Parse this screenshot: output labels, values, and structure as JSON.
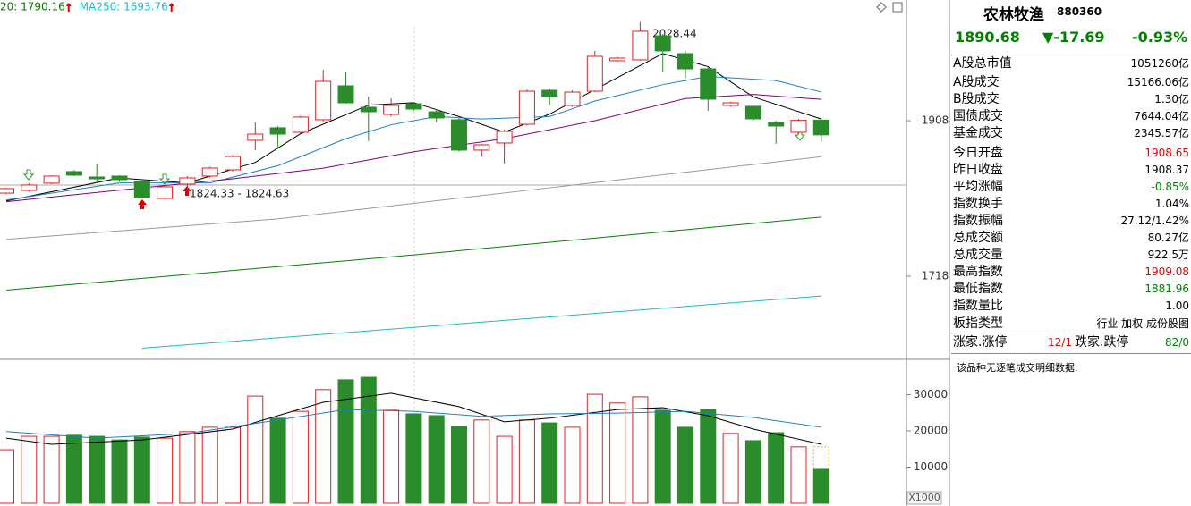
{
  "chart_data": [
    {
      "type": "candlestick",
      "up_color": "#e02020",
      "down_color": "#2b8c2b",
      "ylim": [
        1616.4,
        2055.4
      ],
      "yticks": [
        1908,
        1718
      ],
      "open": [
        1819.5,
        1822.8,
        1831.6,
        1845.8,
        1839.2,
        1840.3,
        1833.7,
        1813.0,
        1830.5,
        1840.3,
        1847.9,
        1884.0,
        1899.3,
        1893.8,
        1909.1,
        1950.6,
        1924.4,
        1915.6,
        1928.7,
        1918.9,
        1909.1,
        1872.0,
        1880.7,
        1903.6,
        1945.1,
        1926.6,
        1944.0,
        1981.2,
        1982.3,
        2011.7,
        1989.9,
        1971.3,
        1926.6,
        1925.5,
        1905.8,
        1893.8,
        1908.65
      ],
      "close": [
        1825.0,
        1829.4,
        1840.3,
        1841.4,
        1837.0,
        1835.9,
        1814.1,
        1827.2,
        1838.1,
        1850.1,
        1864.3,
        1891.6,
        1891.6,
        1912.4,
        1956.0,
        1929.8,
        1918.9,
        1926.6,
        1922.2,
        1911.3,
        1872.0,
        1878.5,
        1894.9,
        1944.0,
        1937.5,
        1942.9,
        1986.6,
        1984.4,
        2017.2,
        1993.2,
        1971.3,
        1934.2,
        1929.8,
        1910.2,
        1901.4,
        1908.37,
        1890.68
      ],
      "high": [
        1826,
        1831.6,
        1841.4,
        1847.9,
        1854.5,
        1841.4,
        1837.0,
        1828,
        1840.3,
        1852,
        1866,
        1905.8,
        1901.4,
        1914,
        1970.2,
        1968.1,
        1937.5,
        1935.3,
        1930.9,
        1922,
        1911,
        1880,
        1897,
        1946,
        1947,
        1945,
        1993.2,
        1986,
        2028.44,
        2014,
        1993,
        1973,
        1931,
        1926,
        1908,
        1910,
        1909.08
      ],
      "low": [
        1818,
        1821,
        1830.5,
        1840.3,
        1831.6,
        1833.7,
        1813,
        1812,
        1824.33,
        1838,
        1846,
        1872.0,
        1875.2,
        1892,
        1907,
        1928.7,
        1883,
        1913,
        1920,
        1906,
        1870,
        1864.3,
        1855.6,
        1902,
        1927,
        1925,
        1942.9,
        1980,
        1981,
        1968.1,
        1960,
        1920.0,
        1925,
        1908,
        1879.6,
        1892,
        1881.96
      ],
      "ma": [
        {
          "color": "#000000",
          "x": [
            0,
            5,
            8,
            11,
            13,
            16,
            18,
            20,
            22,
            24,
            26,
            29,
            31,
            33,
            36
          ],
          "values": [
            1810,
            1838,
            1832,
            1857,
            1892,
            1927,
            1930,
            1913,
            1894,
            1916,
            1946,
            1990,
            1974,
            1937,
            1910
          ]
        },
        {
          "color": "#1e7fc0",
          "x": [
            0,
            5,
            9,
            12,
            15,
            17,
            19,
            21,
            24,
            26,
            29,
            31,
            34,
            36
          ],
          "values": [
            1811,
            1832,
            1832,
            1853,
            1886,
            1903,
            1913,
            1910,
            1913,
            1932,
            1952,
            1962,
            1957,
            1943
          ]
        },
        {
          "color": "#800080",
          "x": [
            0,
            6,
            10,
            14,
            18,
            22,
            26,
            30,
            33,
            36
          ],
          "values": [
            1809,
            1826,
            1837,
            1850,
            1870,
            1886,
            1908,
            1935,
            1940,
            1934
          ]
        },
        {
          "color": "#999999",
          "x": [
            0,
            12,
            24,
            36
          ],
          "values": [
            1763,
            1788,
            1826,
            1864
          ]
        },
        {
          "name": "20: 1790.16",
          "color": "#008000",
          "x": [
            0,
            18,
            36
          ],
          "values": [
            1701,
            1744,
            1790.16
          ]
        },
        {
          "name": "MA250: 1693.76",
          "color": "#20b8c8",
          "x": [
            6,
            36
          ],
          "values": [
            1630,
            1693.76
          ]
        }
      ],
      "annotations": [
        "2028.44",
        "1824.33 - 1824.63"
      ]
    },
    {
      "type": "bar",
      "axis_label": "X1000",
      "ylim": [
        0,
        39500
      ],
      "yticks": [
        30000,
        20000,
        10000
      ],
      "values": [
        14800,
        18500,
        18500,
        18800,
        18500,
        17500,
        18300,
        18000,
        19800,
        21000,
        21000,
        29600,
        23500,
        25400,
        31400,
        34100,
        34800,
        25700,
        24700,
        24200,
        21200,
        23000,
        18500,
        23000,
        22200,
        21000,
        30100,
        27700,
        29400,
        25700,
        21000,
        25900,
        19300,
        17300,
        19500,
        15600,
        9400
      ],
      "forecast_value": 15600,
      "ma": [
        {
          "color": "#000000",
          "x": [
            0,
            2,
            6,
            10,
            14,
            17,
            20,
            22,
            24,
            27,
            29,
            31,
            33,
            36
          ],
          "values": [
            18000,
            16300,
            17500,
            20500,
            27900,
            30400,
            26700,
            22500,
            23500,
            25900,
            26400,
            24200,
            20500,
            16300
          ]
        },
        {
          "color": "#1e7fc0",
          "x": [
            0,
            4,
            8,
            12,
            15,
            18,
            21,
            24,
            27,
            30,
            33,
            36
          ],
          "values": [
            19800,
            18000,
            19300,
            23000,
            25900,
            25400,
            24000,
            24700,
            24900,
            25400,
            23700,
            21000
          ]
        }
      ]
    }
  ],
  "quote": {
    "name": "农林牧渔",
    "code": "880360",
    "price": "1890.68",
    "change": "▼-17.69",
    "change_pct": "-0.93%"
  },
  "stats": [
    {
      "label": "A股总市值",
      "value": "1051260亿"
    },
    {
      "label": "A股成交",
      "value": "15166.06亿"
    },
    {
      "label": "B股成交",
      "value": "1.30亿"
    },
    {
      "label": "国债成交",
      "value": "7644.04亿"
    },
    {
      "label": "基金成交",
      "value": "2345.57亿"
    },
    {
      "label": "今日开盘",
      "value": "1908.65",
      "color": "#e00000"
    },
    {
      "label": "昨日收盘",
      "value": "1908.37"
    },
    {
      "label": "平均涨幅",
      "value": "-0.85%",
      "color": "#008000"
    },
    {
      "label": "指数换手",
      "value": "1.04%"
    },
    {
      "label": "指数振幅",
      "value": "27.12/1.42%"
    },
    {
      "label": "总成交额",
      "value": "80.27亿"
    },
    {
      "label": "总成交量",
      "value": "922.5万"
    },
    {
      "label": "最高指数",
      "value": "1909.08",
      "color": "#e00000"
    },
    {
      "label": "最低指数",
      "value": "1881.96",
      "color": "#008000"
    },
    {
      "label": "指数量比",
      "value": "1.00"
    },
    {
      "label": "板指类型",
      "value": "行业 加权 成份股图"
    }
  ],
  "breadth": {
    "up_label": "涨家.涨停",
    "up_value": "12/1",
    "down_label": "跌家.跌停",
    "down_value": "82/0"
  },
  "note": "该品种无逐笔成交明细数据."
}
